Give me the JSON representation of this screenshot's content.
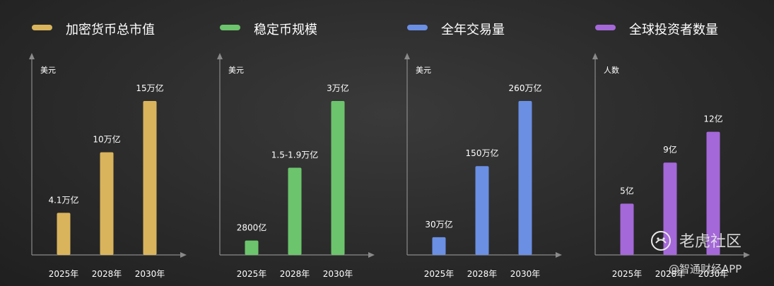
{
  "chart_data": [
    {
      "type": "bar",
      "title": "加密货币总市值",
      "ylabel": "美元",
      "color": "#d9b45c",
      "categories": [
        "2025年",
        "2028年",
        "2030年"
      ],
      "values": [
        4.1,
        10,
        15
      ],
      "value_labels": [
        "4.1万亿",
        "10万亿",
        "15万亿"
      ],
      "ylim": [
        0,
        15
      ]
    },
    {
      "type": "bar",
      "title": "稳定币规模",
      "ylabel": "美元",
      "color": "#6cc46c",
      "categories": [
        "2025年",
        "2028年",
        "2030年"
      ],
      "values": [
        0.28,
        1.7,
        3
      ],
      "value_labels": [
        "2800亿",
        "1.5-1.9万亿",
        "3万亿"
      ],
      "ylim": [
        0,
        3
      ]
    },
    {
      "type": "bar",
      "title": "全年交易量",
      "ylabel": "美元",
      "color": "#6a8fe3",
      "categories": [
        "2025年",
        "2028年",
        "2030年"
      ],
      "values": [
        30,
        150,
        260
      ],
      "value_labels": [
        "30万亿",
        "150万亿",
        "260万亿"
      ],
      "ylim": [
        0,
        260
      ]
    },
    {
      "type": "bar",
      "title": "全球投资者数量",
      "ylabel": "人数",
      "color": "#a468d8",
      "categories": [
        "2025年",
        "2028年",
        "2030年"
      ],
      "values": [
        5,
        9,
        12
      ],
      "value_labels": [
        "5亿",
        "9亿",
        "12亿"
      ],
      "ylim": [
        0,
        15
      ]
    }
  ],
  "watermark": {
    "main": "老虎社区",
    "sub": "@智通财经APP"
  }
}
